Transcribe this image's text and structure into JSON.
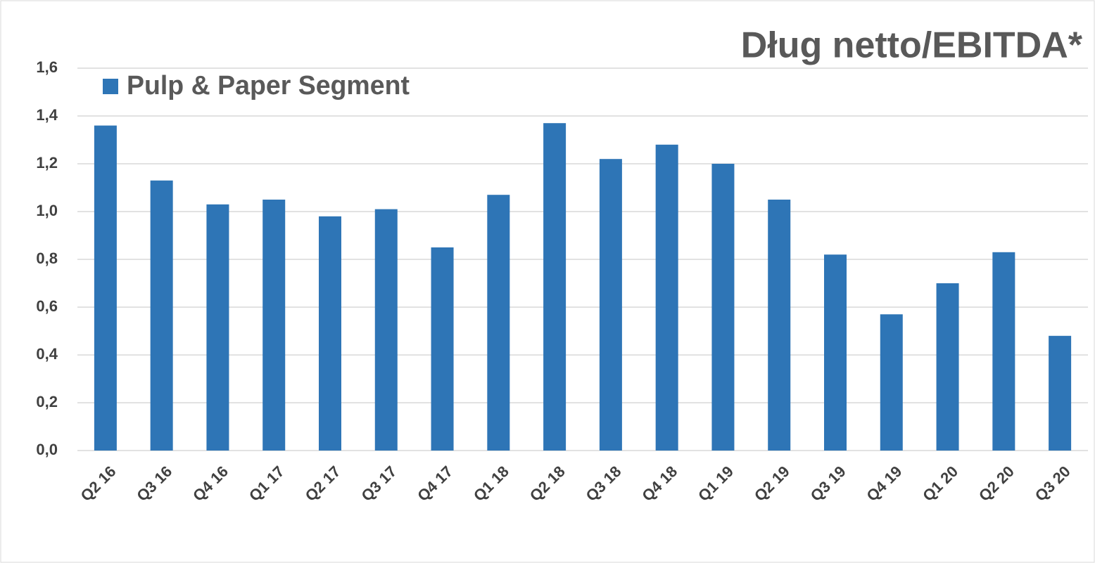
{
  "chart_data": {
    "type": "bar",
    "title": "Dług netto/EBITDA*",
    "categories": [
      "Q2 16",
      "Q3 16",
      "Q4 16",
      "Q1 17",
      "Q2 17",
      "Q3 17",
      "Q4 17",
      "Q1 18",
      "Q2 18",
      "Q3 18",
      "Q4 18",
      "Q1 19",
      "Q2 19",
      "Q3 19",
      "Q4 19",
      "Q1 20",
      "Q2 20",
      "Q3 20"
    ],
    "series": [
      {
        "name": "Pulp & Paper Segment",
        "color": "#2e75b6",
        "values": [
          1.36,
          1.13,
          1.03,
          1.05,
          0.98,
          1.01,
          0.85,
          1.07,
          1.37,
          1.22,
          1.28,
          1.2,
          1.05,
          0.82,
          0.57,
          0.7,
          0.83,
          0.48
        ]
      }
    ],
    "ylim": [
      0,
      1.6
    ],
    "yticks": [
      {
        "value": 0,
        "label": "0,0"
      },
      {
        "value": 0.2,
        "label": "0,2"
      },
      {
        "value": 0.4,
        "label": "0,4"
      },
      {
        "value": 0.6,
        "label": "0,6"
      },
      {
        "value": 0.8,
        "label": "0,8"
      },
      {
        "value": 1.0,
        "label": "1,0"
      },
      {
        "value": 1.2,
        "label": "1,2"
      },
      {
        "value": 1.4,
        "label": "1,4"
      },
      {
        "value": 1.6,
        "label": "1,6"
      }
    ],
    "grid": true,
    "legend": "top-left"
  }
}
